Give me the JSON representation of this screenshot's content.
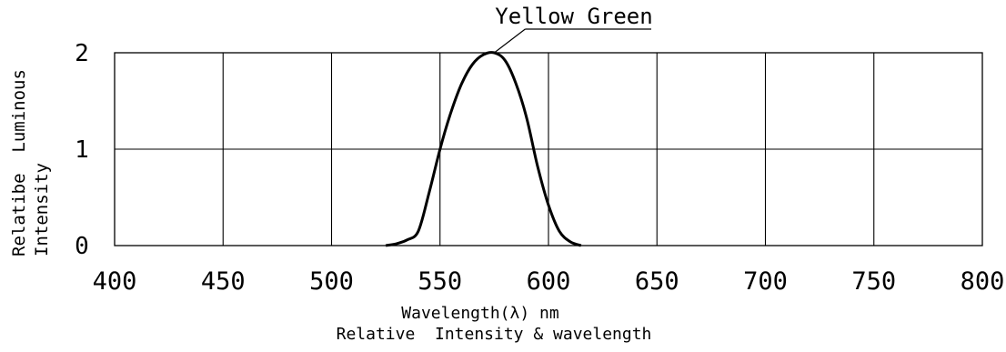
{
  "chart_data": {
    "type": "line",
    "title": "",
    "xlabel": "Wavelength(λ) nm",
    "caption": "Relative  Intensity & wavelength",
    "ylabel_line1": "Relatibe  Luminous",
    "ylabel_line2": "Intensity",
    "xlim": [
      400,
      800
    ],
    "ylim": [
      0,
      2
    ],
    "grid": true,
    "x_ticks": [
      400,
      450,
      500,
      550,
      600,
      650,
      700,
      750,
      800
    ],
    "y_ticks": [
      0,
      1,
      2
    ],
    "series": [
      {
        "name": "Yellow Green",
        "x": [
          525,
          530,
          535,
          540,
          545,
          550,
          555,
          560,
          565,
          570,
          575,
          580,
          585,
          590,
          595,
          600,
          605,
          610,
          615
        ],
        "y": [
          0.0,
          0.02,
          0.06,
          0.15,
          0.55,
          1.0,
          1.38,
          1.68,
          1.88,
          1.98,
          2.0,
          1.92,
          1.68,
          1.32,
          0.82,
          0.42,
          0.15,
          0.04,
          0.0
        ]
      }
    ]
  }
}
